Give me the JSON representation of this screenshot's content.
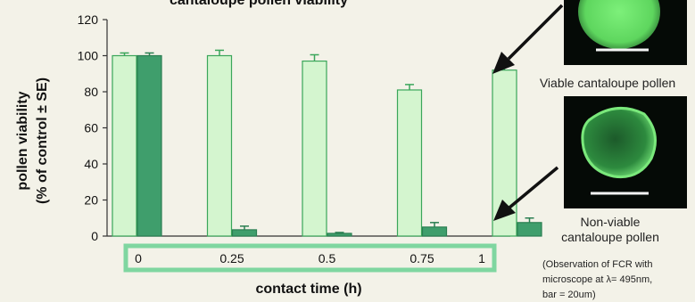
{
  "chart_data": {
    "type": "bar",
    "title": "cantaloupe pollen viability",
    "xlabel": "contact time (h)",
    "ylabel_line1": "pollen viability",
    "ylabel_line2": "(% of control ± SE)",
    "ylim": [
      0,
      120
    ],
    "yticks": [
      0,
      20,
      40,
      60,
      80,
      100,
      120
    ],
    "categories": [
      "0",
      "0.25",
      "0.5",
      "0.75",
      "1"
    ],
    "series": [
      {
        "name": "",
        "color": "#d4f5cf",
        "stroke": "#3aa65a",
        "values": [
          100,
          100,
          97,
          81,
          92
        ],
        "errors": [
          1.5,
          3,
          3.5,
          3,
          3.5
        ]
      },
      {
        "name": "",
        "color": "#3f9e6c",
        "stroke": "#2b7f52",
        "values": [
          100,
          3.5,
          1.5,
          5,
          7.5
        ],
        "errors": [
          1.5,
          2,
          0.5,
          2.5,
          2.5
        ]
      }
    ],
    "grid": false,
    "legend": "none"
  },
  "annotations": {
    "viable_label": "Viable cantaloupe pollen",
    "nonviable_line1": "Non-viable",
    "nonviable_line2": "cantaloupe pollen",
    "note_line1": "(Observation of FCR with",
    "note_line2": "microscope at λ= 495nm,",
    "note_line3": "bar = 20um)"
  },
  "colors": {
    "background": "#f3f2e8",
    "accent_border": "#7fd6a0",
    "micrograph_bg": "#050a06",
    "pollen_bright": "#7df07a"
  }
}
